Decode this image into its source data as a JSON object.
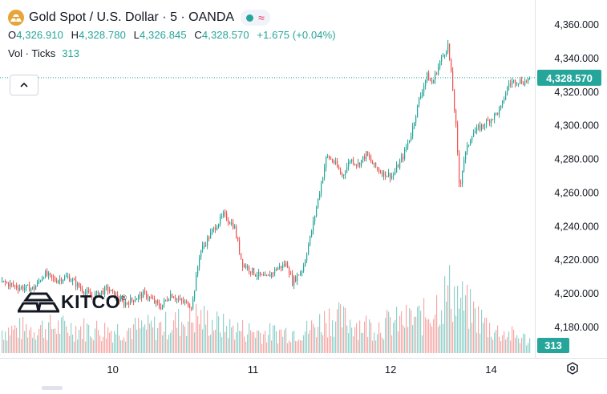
{
  "header": {
    "title": "Gold Spot / U.S. Dollar · 5 · OANDA",
    "ohlc": [
      {
        "label": "O",
        "value": "4,326.910"
      },
      {
        "label": "H",
        "value": "4,328.780"
      },
      {
        "label": "L",
        "value": "4,326.845"
      },
      {
        "label": "C",
        "value": "4,328.570"
      }
    ],
    "change": "+1.675 (+0.04%)",
    "volume_label": "Vol · Ticks",
    "volume_value": "313"
  },
  "watermark": "KITCO",
  "colors": {
    "up": "#26a69a",
    "down": "#ef5350",
    "accent": "#26a69a",
    "logo": "#e8a33a"
  },
  "chart_data": {
    "type": "candlestick",
    "title": "Gold Spot / U.S. Dollar · 5 · OANDA",
    "interval": "5 minutes",
    "x_tick_labels": [
      "10",
      "11",
      "12",
      "14"
    ],
    "y_tick_labels": [
      "4,360.000",
      "4,340.000",
      "4,320.000",
      "4,300.000",
      "4,280.000",
      "4,260.000",
      "4,240.000",
      "4,220.000",
      "4,200.000",
      "4,180.000"
    ],
    "ylim": [
      4172,
      4365
    ],
    "last_price": 4328.57,
    "last_price_label": "4,328.570",
    "last_volume_label": "313",
    "price_path": [
      {
        "t": 0.0,
        "p": 4207
      },
      {
        "t": 0.03,
        "p": 4204
      },
      {
        "t": 0.06,
        "p": 4203
      },
      {
        "t": 0.08,
        "p": 4212
      },
      {
        "t": 0.1,
        "p": 4208
      },
      {
        "t": 0.125,
        "p": 4210
      },
      {
        "t": 0.15,
        "p": 4203
      },
      {
        "t": 0.17,
        "p": 4198
      },
      {
        "t": 0.2,
        "p": 4203
      },
      {
        "t": 0.23,
        "p": 4194
      },
      {
        "t": 0.25,
        "p": 4197
      },
      {
        "t": 0.27,
        "p": 4200
      },
      {
        "t": 0.3,
        "p": 4192
      },
      {
        "t": 0.32,
        "p": 4200
      },
      {
        "t": 0.335,
        "p": 4196
      },
      {
        "t": 0.36,
        "p": 4193
      },
      {
        "t": 0.375,
        "p": 4225
      },
      {
        "t": 0.4,
        "p": 4238
      },
      {
        "t": 0.42,
        "p": 4247
      },
      {
        "t": 0.44,
        "p": 4240
      },
      {
        "t": 0.455,
        "p": 4218
      },
      {
        "t": 0.48,
        "p": 4212
      },
      {
        "t": 0.5,
        "p": 4209
      },
      {
        "t": 0.52,
        "p": 4215
      },
      {
        "t": 0.54,
        "p": 4218
      },
      {
        "t": 0.55,
        "p": 4207
      },
      {
        "t": 0.57,
        "p": 4215
      },
      {
        "t": 0.585,
        "p": 4235
      },
      {
        "t": 0.6,
        "p": 4258
      },
      {
        "t": 0.615,
        "p": 4282
      },
      {
        "t": 0.63,
        "p": 4278
      },
      {
        "t": 0.645,
        "p": 4270
      },
      {
        "t": 0.66,
        "p": 4280
      },
      {
        "t": 0.675,
        "p": 4277
      },
      {
        "t": 0.69,
        "p": 4283
      },
      {
        "t": 0.705,
        "p": 4276
      },
      {
        "t": 0.72,
        "p": 4272
      },
      {
        "t": 0.74,
        "p": 4270
      },
      {
        "t": 0.76,
        "p": 4282
      },
      {
        "t": 0.775,
        "p": 4295
      },
      {
        "t": 0.79,
        "p": 4315
      },
      {
        "t": 0.805,
        "p": 4330
      },
      {
        "t": 0.815,
        "p": 4325
      },
      {
        "t": 0.83,
        "p": 4338
      },
      {
        "t": 0.845,
        "p": 4348
      },
      {
        "t": 0.853,
        "p": 4325
      },
      {
        "t": 0.86,
        "p": 4300
      },
      {
        "t": 0.867,
        "p": 4262
      },
      {
        "t": 0.875,
        "p": 4280
      },
      {
        "t": 0.89,
        "p": 4295
      },
      {
        "t": 0.91,
        "p": 4300
      },
      {
        "t": 0.93,
        "p": 4305
      },
      {
        "t": 0.945,
        "p": 4310
      },
      {
        "t": 0.96,
        "p": 4325
      },
      {
        "t": 0.975,
        "p": 4327
      },
      {
        "t": 0.99,
        "p": 4326
      },
      {
        "t": 1.0,
        "p": 4328.57
      }
    ],
    "volume_path": [
      {
        "t": 0.0,
        "v": 0.35
      },
      {
        "t": 0.1,
        "v": 0.4
      },
      {
        "t": 0.2,
        "v": 0.35
      },
      {
        "t": 0.3,
        "v": 0.4
      },
      {
        "t": 0.37,
        "v": 0.55
      },
      {
        "t": 0.42,
        "v": 0.4
      },
      {
        "t": 0.5,
        "v": 0.3
      },
      {
        "t": 0.58,
        "v": 0.35
      },
      {
        "t": 0.62,
        "v": 0.55
      },
      {
        "t": 0.7,
        "v": 0.4
      },
      {
        "t": 0.8,
        "v": 0.55
      },
      {
        "t": 0.85,
        "v": 0.95
      },
      {
        "t": 0.88,
        "v": 0.7
      },
      {
        "t": 0.93,
        "v": 0.35
      },
      {
        "t": 1.0,
        "v": 0.2
      }
    ]
  }
}
